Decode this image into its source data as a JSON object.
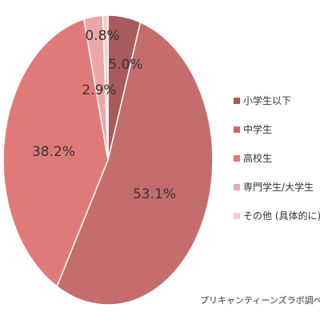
{
  "chart_data": {
    "type": "pie",
    "title": "",
    "categories": [
      "小学生以下",
      "中学生",
      "高校生",
      "専門学生/大学生",
      "その他 (具体的に)"
    ],
    "values": [
      5.0,
      53.1,
      38.2,
      2.9,
      0.8
    ],
    "data_labels": [
      "5.0%",
      "53.1%",
      "38.2%",
      "2.9%",
      "0.8%"
    ],
    "colors": [
      "#a95a5a",
      "#c56c6c",
      "#e07a7a",
      "#eba8a8",
      "#f4cccc"
    ],
    "start_angle": "top",
    "direction": "clockwise",
    "legend_placement": "right"
  },
  "credit": "プリキャンティーンズラボ調べ"
}
